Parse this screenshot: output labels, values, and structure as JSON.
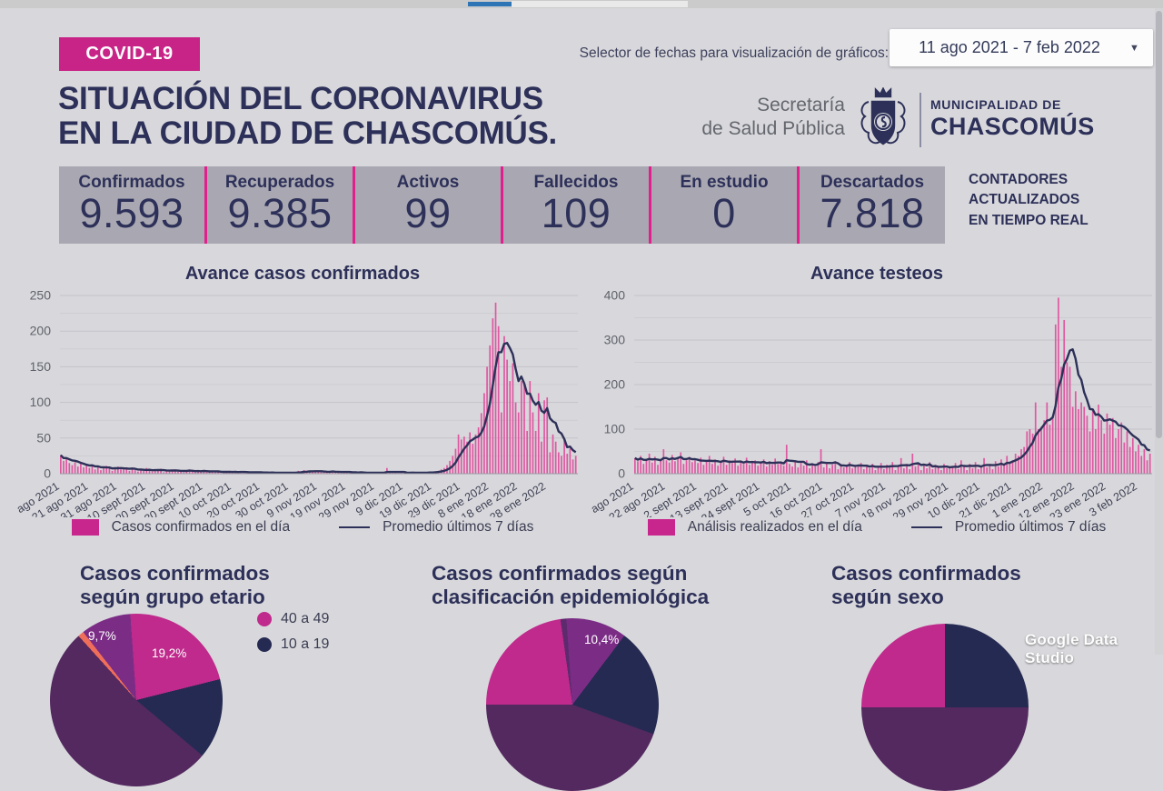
{
  "colors": {
    "background": "#d8d8dc",
    "navy": "#2d3058",
    "magenta_badge": "#c82387",
    "magenta_divider": "#e11f8d",
    "bar_pink": "#de58a1",
    "band_gray": "#a9a8b2",
    "grid_major": "#c2c2c9",
    "grid_minor": "#ccccd2",
    "axis_label": "#5f626b",
    "pie_magenta": "#bf2a8c",
    "pie_purple": "#7b2d86",
    "pie_dark_purple": "#53295f",
    "pie_sliver_purple": "#5d2a6d",
    "pie_navy": "#252a52",
    "pie_orange": "#ef6e5a"
  },
  "header": {
    "badge": "COVID-19",
    "title_line1": "SITUACIÓN DEL CORONAVIRUS",
    "title_line2": "EN LA CIUDAD DE CHASCOMÚS.",
    "date_selector_label": "Selector de fechas para visualización de gráficos:",
    "date_range": "11 ago 2021 - 7 feb 2022",
    "caret_icon": "▼",
    "org_line1": "Secretaría",
    "org_line2": "de Salud Pública",
    "muni_line1": "MUNICIPALIDAD DE",
    "muni_line2": "CHASCOMÚS"
  },
  "counters": {
    "items": [
      {
        "label": "Confirmados",
        "value": "9.593"
      },
      {
        "label": "Recuperados",
        "value": "9.385"
      },
      {
        "label": "Activos",
        "value": "99"
      },
      {
        "label": "Fallecidos",
        "value": "109"
      },
      {
        "label": "En estudio",
        "value": "0"
      },
      {
        "label": "Descartados",
        "value": "7.818"
      }
    ],
    "note_lines": [
      "CONTADORES",
      "ACTUALIZADOS",
      "EN TIEMPO REAL"
    ]
  },
  "chart_data": [
    {
      "type": "bar",
      "title": "Avance casos confirmados",
      "ylim": [
        0,
        250
      ],
      "y_ticks": [
        0,
        50,
        100,
        150,
        200,
        250
      ],
      "y_minor_step": 25,
      "legend_bar": "Casos confirmados en el día",
      "legend_line": "Promedio últimos 7 días",
      "line_definition": "rolling-mean-7-days",
      "x_tick_days": [
        0,
        10,
        20,
        30,
        40,
        50,
        60,
        70,
        80,
        90,
        100,
        110,
        120,
        130,
        140,
        150,
        160,
        170
      ],
      "x_tick_labels": [
        "ago 2021",
        "21 ago 2021",
        "31 ago 2021",
        "10 sept 2021",
        "20 sept 2021",
        "30 sept 2021",
        "10 oct 2021",
        "20 oct 2021",
        "30 oct 2021",
        "9 nov 2021",
        "19 nov 2021",
        "29 nov 2021",
        "9 dic 2021",
        "19 dic 2021",
        "29 dic 2021",
        "8 ene 2022",
        "18 ene 2022",
        "28 ene 2022"
      ],
      "values": [
        26,
        18,
        22,
        15,
        12,
        16,
        10,
        14,
        9,
        12,
        8,
        13,
        6,
        10,
        5,
        9,
        11,
        7,
        4,
        8,
        10,
        6,
        7,
        9,
        4,
        7,
        5,
        3,
        6,
        4,
        8,
        5,
        3,
        6,
        4,
        7,
        2,
        5,
        3,
        4,
        6,
        3,
        5,
        2,
        4,
        6,
        3,
        2,
        4,
        3,
        5,
        2,
        3,
        4,
        2,
        3,
        1,
        3,
        2,
        4,
        2,
        3,
        1,
        2,
        3,
        1,
        2,
        1,
        3,
        2,
        1,
        2,
        1,
        1,
        2,
        1,
        2,
        1,
        1,
        2,
        1,
        1,
        2,
        4,
        3,
        5,
        4,
        3,
        2,
        3,
        4,
        3,
        2,
        3,
        2,
        4,
        2,
        3,
        1,
        2,
        3,
        2,
        1,
        2,
        1,
        2,
        1,
        1,
        2,
        1,
        2,
        1,
        2,
        1,
        8,
        2,
        1,
        2,
        1,
        2,
        1,
        2,
        1,
        2,
        1,
        1,
        2,
        1,
        2,
        3,
        2,
        3,
        4,
        6,
        8,
        12,
        18,
        25,
        35,
        55,
        48,
        52,
        45,
        58,
        42,
        55,
        65,
        85,
        113,
        150,
        180,
        218,
        240,
        207,
        86,
        193,
        160,
        130,
        155,
        100,
        86,
        130,
        125,
        60,
        130,
        86,
        60,
        113,
        45,
        103,
        107,
        30,
        55,
        45,
        30,
        25,
        48,
        28,
        35,
        20,
        25
      ]
    },
    {
      "type": "bar",
      "title": "Avance testeos",
      "ylim": [
        0,
        400
      ],
      "y_ticks": [
        0,
        100,
        200,
        300,
        400
      ],
      "y_minor_step": 50,
      "legend_bar": "Análisis realizados en el día",
      "legend_line": "Promedio últimos 7 días",
      "line_definition": "rolling-mean-7-days",
      "x_tick_days": [
        0,
        11,
        22,
        33,
        44,
        55,
        66,
        77,
        88,
        99,
        110,
        121,
        132,
        143,
        154,
        165,
        176
      ],
      "x_tick_labels": [
        "ago 2021",
        "22 ago 2021",
        "2 sept 2021",
        "13 sept 2021",
        "24 sept 2021",
        "5 oct 2021",
        "16 oct 2021",
        "27 oct 2021",
        "7 nov 2021",
        "18 nov 2021",
        "29 nov 2021",
        "10 dic 2021",
        "21 dic 2021",
        "1 ene 2022",
        "12 ene 2022",
        "23 ene 2022",
        "3 feb 2022"
      ],
      "values": [
        35,
        28,
        40,
        22,
        30,
        45,
        25,
        38,
        20,
        32,
        55,
        30,
        25,
        42,
        28,
        35,
        48,
        22,
        30,
        38,
        26,
        30,
        24,
        36,
        20,
        28,
        40,
        22,
        32,
        18,
        26,
        38,
        20,
        30,
        24,
        34,
        18,
        28,
        22,
        36,
        20,
        26,
        30,
        18,
        24,
        32,
        16,
        28,
        20,
        34,
        22,
        24,
        18,
        65,
        22,
        16,
        28,
        14,
        24,
        18,
        30,
        12,
        22,
        16,
        26,
        55,
        14,
        24,
        12,
        20,
        28,
        10,
        22,
        14,
        18,
        26,
        12,
        20,
        16,
        24,
        10,
        18,
        12,
        22,
        8,
        16,
        24,
        10,
        20,
        14,
        26,
        8,
        18,
        35,
        12,
        22,
        10,
        45,
        16,
        24,
        8,
        18,
        12,
        26,
        10,
        20,
        14,
        8,
        22,
        12,
        16,
        14,
        24,
        10,
        30,
        16,
        8,
        22,
        12,
        26,
        10,
        18,
        35,
        14,
        22,
        10,
        28,
        16,
        32,
        20,
        40,
        25,
        30,
        45,
        40,
        55,
        60,
        95,
        100,
        90,
        160,
        100,
        105,
        120,
        160,
        110,
        130,
        335,
        395,
        240,
        345,
        250,
        240,
        150,
        185,
        145,
        160,
        150,
        130,
        95,
        145,
        100,
        155,
        120,
        90,
        135,
        110,
        125,
        80,
        100,
        115,
        70,
        95,
        60,
        80,
        50,
        65,
        40,
        55,
        30,
        45
      ]
    },
    {
      "type": "pie",
      "title": "Casos confirmados según grupo etario",
      "title_lines": [
        "Casos confirmados",
        "según grupo etario"
      ],
      "visible_slice_labels": [
        {
          "text": "9,7%",
          "color_key": "pie_purple"
        },
        {
          "text": "19,2%",
          "color_key": "pie_magenta"
        }
      ],
      "legend": [
        {
          "label": "40 a 49",
          "color_key": "pie_magenta"
        },
        {
          "label": "10 a 19",
          "color_key": "pie_navy"
        }
      ],
      "conic_from_deg": 356,
      "segments": [
        {
          "color_key": "pie_magenta",
          "start": 0,
          "end": 80
        },
        {
          "color_key": "pie_navy",
          "start": 80,
          "end": 134
        },
        {
          "color_key": "pie_dark_purple",
          "start": 134,
          "end": 322
        },
        {
          "color_key": "pie_orange",
          "start": 322,
          "end": 326
        },
        {
          "color_key": "pie_purple",
          "start": 326,
          "end": 360
        }
      ]
    },
    {
      "type": "pie",
      "title": "Casos confirmados según clasificación epidemiológica",
      "title_lines": [
        "Casos confirmados según",
        "clasificación epidemiológica"
      ],
      "visible_slice_labels": [
        {
          "text": "10,4%",
          "color_key": "pie_purple"
        }
      ],
      "legend": [],
      "conic_from_deg": 270,
      "segments": [
        {
          "color_key": "pie_magenta",
          "start": 0,
          "end": 82
        },
        {
          "color_key": "pie_sliver_purple",
          "start": 82,
          "end": 86
        },
        {
          "color_key": "pie_purple",
          "start": 86,
          "end": 127
        },
        {
          "color_key": "pie_navy",
          "start": 127,
          "end": 200
        },
        {
          "color_key": "pie_dark_purple",
          "start": 200,
          "end": 360
        }
      ]
    },
    {
      "type": "pie",
      "title": "Casos confirmados según sexo",
      "title_lines": [
        "Casos confirmados",
        "según sexo"
      ],
      "visible_slice_labels": [],
      "legend": [],
      "conic_from_deg": 270,
      "segments": [
        {
          "color_key": "pie_magenta",
          "start": 0,
          "end": 90
        },
        {
          "color_key": "pie_navy",
          "start": 90,
          "end": 180
        },
        {
          "color_key": "pie_dark_purple",
          "start": 180,
          "end": 360
        }
      ]
    }
  ],
  "watermark": "Google Data Studio"
}
